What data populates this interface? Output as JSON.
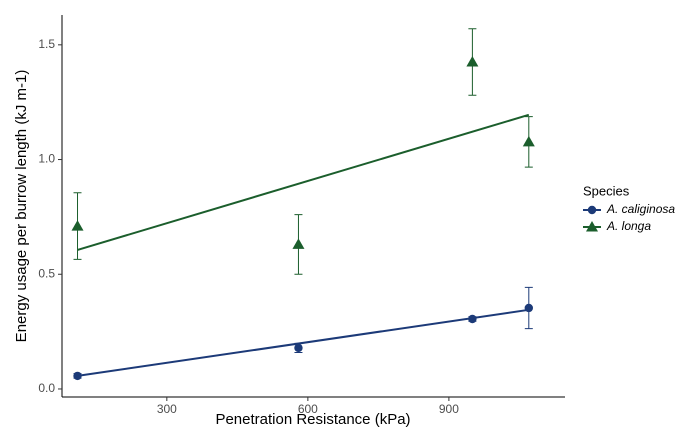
{
  "chart_data": {
    "type": "scatter",
    "x_label": "Penetration Resistance (kPa)",
    "y_label": "Energy usage per burrow length (kJ m-1)",
    "legend_title": "Species",
    "legend": "right",
    "x": [
      110,
      580,
      950,
      1070
    ],
    "xlim": [
      77,
      1147
    ],
    "ylim": [
      -0.035,
      1.63
    ],
    "xticks": [
      300,
      600,
      900
    ],
    "yticks": [
      {
        "value": 0,
        "label": "0.0"
      },
      {
        "value": 0.5,
        "label": "0.5"
      },
      {
        "value": 1,
        "label": "1.0"
      },
      {
        "value": 1.5,
        "label": "1.5"
      }
    ],
    "series": [
      {
        "name": "A. caliginosa",
        "color": "#1c3a78",
        "marker": "circle",
        "values": [
          0.057,
          0.179,
          0.305,
          0.353
        ],
        "errors": [
          0.01,
          0.02,
          0.01,
          0.09
        ],
        "fit": [
          0.057,
          0.345
        ]
      },
      {
        "name": "A. longa",
        "color": "#1b5e2c",
        "marker": "triangle",
        "values": [
          0.71,
          0.63,
          1.425,
          1.077
        ],
        "errors": [
          0.145,
          0.13,
          0.145,
          0.11
        ],
        "fit": [
          0.606,
          1.195
        ]
      }
    ]
  }
}
